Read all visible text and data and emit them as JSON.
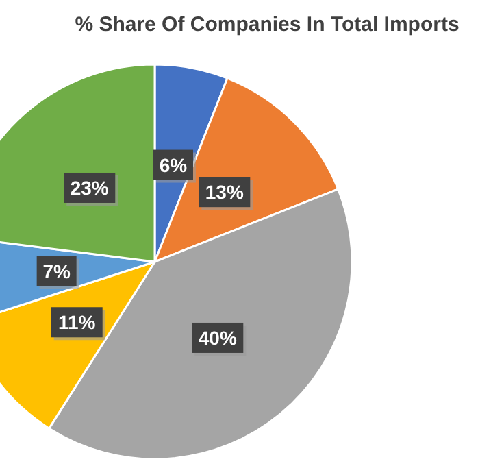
{
  "chart_data": {
    "type": "pie",
    "title": "% Share Of Companies In Total Imports",
    "categories": [
      null,
      null,
      null,
      null,
      null,
      null
    ],
    "values": [
      6,
      13,
      40,
      11,
      7,
      23
    ],
    "value_labels": [
      "6%",
      "13%",
      "40%",
      "11%",
      "7%",
      "23%"
    ],
    "colors": [
      "#4472c4",
      "#ed7d31",
      "#a5a5a5",
      "#ffc000",
      "#5b9bd5",
      "#70ad47"
    ]
  }
}
